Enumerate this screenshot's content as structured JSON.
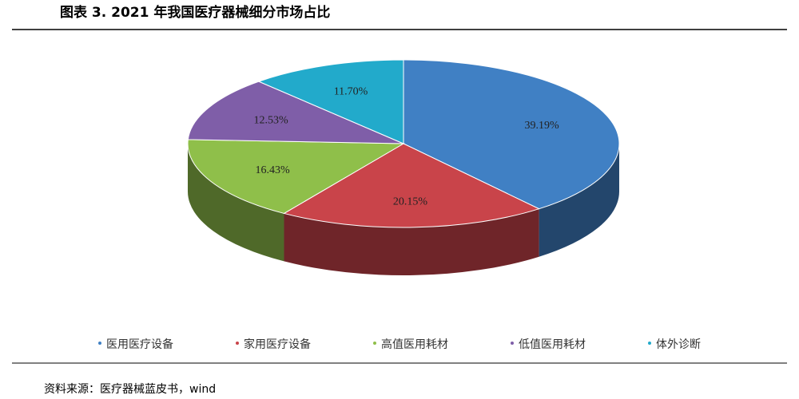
{
  "chart_data": {
    "type": "pie3d",
    "title": "图表 3. 2021 年我国医疗器械细分市场占比",
    "categories": [
      "医用医疗设备",
      "家用医疗设备",
      "高值医用耗材",
      "低值医用耗材",
      "体外诊断"
    ],
    "values": [
      39.19,
      20.15,
      16.43,
      12.53,
      11.7
    ],
    "value_labels": [
      "39.19%",
      "20.15%",
      "16.43%",
      "12.53%",
      "11.70%"
    ],
    "colors": [
      "#4080c4",
      "#c9444a",
      "#8fbf4a",
      "#7f5ea8",
      "#22aacb"
    ],
    "legend": "bottom",
    "source": "资料来源：医疗器械蓝皮书，wind"
  }
}
